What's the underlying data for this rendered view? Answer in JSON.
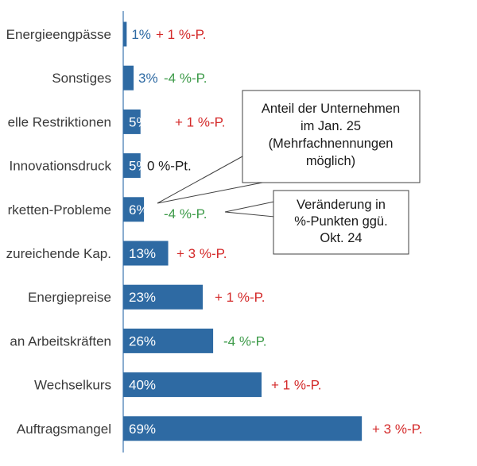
{
  "colors": {
    "bar": "#2e6aa3",
    "axis": "#4a7fb5",
    "label": "#3a3a3a",
    "positive": "#d42a2a",
    "negative": "#3c9a48",
    "neutral": "#1a1a1a",
    "callout_border": "#404040"
  },
  "chart_data": {
    "type": "bar",
    "orientation": "horizontal",
    "title": "",
    "xlabel": "",
    "ylabel": "",
    "xlim": [
      0,
      100
    ],
    "grid": false,
    "categories": [
      "Energieengpässe",
      "Sonstiges",
      "elle Restriktionen",
      "Innovationsdruck",
      "rketten-Probleme",
      "zureichende Kap.",
      "Energiepreise",
      "an Arbeitskräften",
      "Wechselkurs",
      "Auftragsmangel"
    ],
    "values": [
      1,
      3,
      5,
      5,
      6,
      13,
      23,
      26,
      40,
      69
    ],
    "value_labels": [
      "1%",
      "3%",
      "5%",
      "5%",
      "6%",
      "13%",
      "23%",
      "26%",
      "40%",
      "69%"
    ],
    "changes": [
      {
        "text": "+ 1 %-P.",
        "sign": "positive"
      },
      {
        "text": "-4 %-P.",
        "sign": "negative"
      },
      {
        "text": "+ 1 %-P.",
        "sign": "positive"
      },
      {
        "text": "0 %-Pt.",
        "sign": "neutral"
      },
      {
        "text": "-4 %-P.",
        "sign": "negative"
      },
      {
        "text": "+ 3 %-P.",
        "sign": "positive"
      },
      {
        "text": "+ 1 %-P.",
        "sign": "positive"
      },
      {
        "text": "-4 %-P.",
        "sign": "negative"
      },
      {
        "text": "+ 1 %-P.",
        "sign": "positive"
      },
      {
        "text": "+ 3 %-P.",
        "sign": "positive"
      }
    ],
    "annotations": [
      {
        "lines": [
          "Anteil der Unternehmen",
          "im Jan. 25",
          "(Mehrfachnennungen",
          "möglich)"
        ]
      },
      {
        "lines": [
          "Veränderung in",
          "%-Punkten ggü.",
          "Okt. 24"
        ]
      }
    ]
  }
}
